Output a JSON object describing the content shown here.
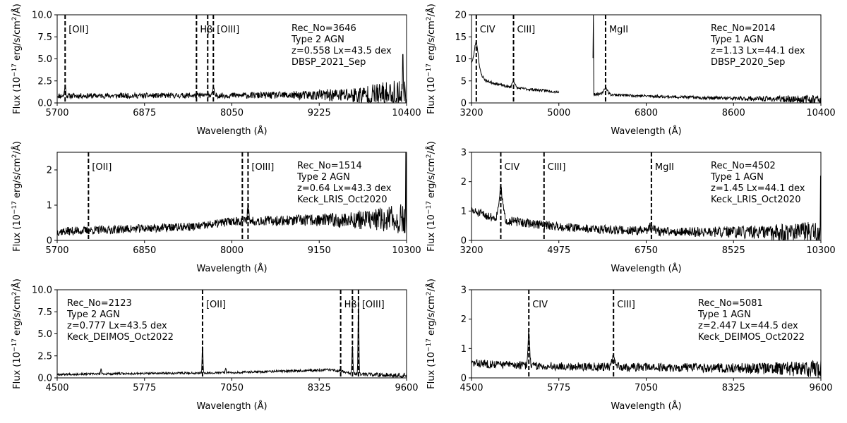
{
  "chart_data": [
    {
      "type": "line",
      "id": "p3646",
      "xlabel": "Wavelength (Å)",
      "ylabel_main": "Flux (10",
      "ylabel_sup": "−17",
      "ylabel_rest": " erg/s/cm",
      "ylabel_sup2": "2",
      "ylabel_end": "/Å)",
      "xlim": [
        5700,
        10400
      ],
      "ylim": [
        0,
        10
      ],
      "xticks": [
        "5700",
        "6875",
        "8050",
        "9225",
        "10400"
      ],
      "yticks": [
        "0.0",
        "2.5",
        "5.0",
        "7.5",
        "10.0"
      ],
      "info": [
        "Rec_No=3646",
        "Type 2 AGN",
        "z=0.558 Lx=43.5 dex",
        "DBSP_2021_Sep"
      ],
      "lines": [
        {
          "x": 5807,
          "label": "[OII]"
        },
        {
          "x": 7574,
          "label": "Hβ"
        },
        {
          "x": 7725,
          "label": ""
        },
        {
          "x": 7801,
          "label": "[OIII]"
        }
      ],
      "spectrum": {
        "gaps": [],
        "base": 0.8,
        "noise": 0.3,
        "noise_red": 1.8,
        "seed": 11,
        "peaks": [
          [
            5807,
            1.2,
            8
          ],
          [
            7725,
            0.5,
            8
          ],
          [
            7801,
            1.0,
            8
          ]
        ],
        "continuum": [
          [
            5700,
            0.8
          ],
          [
            10400,
            0.9
          ]
        ],
        "edge_spike": [
          10350,
          5.5
        ]
      }
    },
    {
      "type": "line",
      "id": "p2014",
      "xlabel": "Wavelength (Å)",
      "ylabel_main": "Flux (10",
      "ylabel_sup": "−17",
      "ylabel_rest": " erg/s/cm",
      "ylabel_sup2": "2",
      "ylabel_end": "/Å)",
      "xlim": [
        3200,
        10400
      ],
      "ylim": [
        0,
        20
      ],
      "xticks": [
        "3200",
        "5000",
        "6800",
        "8600",
        "10400"
      ],
      "yticks": [
        "0",
        "5",
        "10",
        "15",
        "20"
      ],
      "info": [
        "Rec_No=2014",
        "Type 1 AGN",
        "z=1.13 Lx=44.1 dex",
        "DBSP_2020_Sep"
      ],
      "lines": [
        {
          "x": 3299,
          "label": "CIV"
        },
        {
          "x": 4066,
          "label": "CIII]"
        },
        {
          "x": 5963,
          "label": "MgII"
        }
      ],
      "spectrum": {
        "gaps": [
          [
            5000,
            5700
          ]
        ],
        "base": 1.5,
        "noise": 0.3,
        "noise_red": 0.8,
        "seed": 23,
        "peaks": [
          [
            3299,
            6.0,
            40
          ],
          [
            4066,
            1.5,
            30
          ],
          [
            5963,
            1.5,
            40
          ]
        ],
        "continuum": [
          [
            3200,
            9.0
          ],
          [
            3500,
            5.0
          ],
          [
            4000,
            3.5
          ],
          [
            5000,
            2.5
          ],
          [
            5700,
            12.0
          ],
          [
            5720,
            2.0
          ],
          [
            7000,
            1.5
          ],
          [
            8600,
            1.0
          ],
          [
            10400,
            0.8
          ]
        ],
        "edge_spike": [
          5710,
          20.0
        ]
      }
    },
    {
      "type": "line",
      "id": "p1514",
      "xlabel": "Wavelength (Å)",
      "ylabel_main": "Flux (10",
      "ylabel_sup": "−17",
      "ylabel_rest": " erg/s/cm",
      "ylabel_sup2": "2",
      "ylabel_end": "/Å)",
      "xlim": [
        5700,
        10300
      ],
      "ylim": [
        0,
        2.5
      ],
      "xticks": [
        "5700",
        "6850",
        "8000",
        "9150",
        "10300"
      ],
      "yticks": [
        "0",
        "1",
        "2"
      ],
      "info": [
        "Rec_No=1514",
        "Type 2 AGN",
        "z=0.64 Lx=43.3 dex",
        "Keck_LRIS_Oct2020"
      ],
      "lines": [
        {
          "x": 6112,
          "label": "[OII]"
        },
        {
          "x": 8138,
          "label": ""
        },
        {
          "x": 8213,
          "label": "[OIII]"
        }
      ],
      "spectrum": {
        "gaps": [],
        "base": 0.4,
        "noise": 0.12,
        "noise_red": 0.35,
        "seed": 37,
        "peaks": [
          [
            8213,
            0.55,
            8
          ]
        ],
        "continuum": [
          [
            5700,
            0.25
          ],
          [
            7600,
            0.4
          ],
          [
            8000,
            0.55
          ],
          [
            10300,
            0.6
          ]
        ],
        "edge_spike": [
          10290,
          2.5
        ]
      }
    },
    {
      "type": "line",
      "id": "p4502",
      "xlabel": "Wavelength (Å)",
      "ylabel_main": "Flux (10",
      "ylabel_sup": "−17",
      "ylabel_rest": " erg/s/cm",
      "ylabel_sup2": "2",
      "ylabel_end": "/Å)",
      "xlim": [
        3200,
        10300
      ],
      "ylim": [
        0,
        3
      ],
      "xticks": [
        "3200",
        "4975",
        "6750",
        "8525",
        "10300"
      ],
      "yticks": [
        "0",
        "1",
        "2",
        "3"
      ],
      "info": [
        "Rec_No=4502",
        "Type 1 AGN",
        "z=1.45 Lx=44.1 dex",
        "Keck_LRIS_Oct2020"
      ],
      "lines": [
        {
          "x": 3795,
          "label": "CIV"
        },
        {
          "x": 4674,
          "label": "CIII]"
        },
        {
          "x": 6856,
          "label": "MgII"
        }
      ],
      "spectrum": {
        "gaps": [],
        "base": 0.3,
        "noise": 0.15,
        "noise_red": 0.3,
        "seed": 51,
        "peaks": [
          [
            3795,
            1.0,
            40
          ],
          [
            6856,
            0.15,
            60
          ]
        ],
        "continuum": [
          [
            3200,
            1.0
          ],
          [
            3800,
            0.7
          ],
          [
            4500,
            0.55
          ],
          [
            5500,
            0.4
          ],
          [
            7000,
            0.3
          ],
          [
            10300,
            0.25
          ]
        ],
        "edge_spike": [
          10290,
          2.2
        ]
      }
    },
    {
      "type": "line",
      "id": "p2123",
      "xlabel": "Wavelength (Å)",
      "ylabel_main": "Flux (10",
      "ylabel_sup": "−17",
      "ylabel_rest": " erg/s/cm",
      "ylabel_sup2": "2",
      "ylabel_end": "/Å)",
      "xlim": [
        4500,
        9600
      ],
      "ylim": [
        0,
        10
      ],
      "xticks": [
        "4500",
        "5775",
        "7050",
        "8325",
        "9600"
      ],
      "yticks": [
        "0.0",
        "2.5",
        "5.0",
        "7.5",
        "10.0"
      ],
      "info": [
        "Rec_No=2123",
        "Type 2 AGN",
        "z=0.777 Lx=43.5 dex",
        "Keck_DEIMOS_Oct2022"
      ],
      "lines": [
        {
          "x": 6622,
          "label": "[OII]"
        },
        {
          "x": 8638,
          "label": "Hβ"
        },
        {
          "x": 8810,
          "label": ""
        },
        {
          "x": 8898,
          "label": "[OIII]"
        }
      ],
      "spectrum": {
        "gaps": [],
        "base": 0.4,
        "noise": 0.12,
        "noise_red": 0.15,
        "seed": 67,
        "peaks": [
          [
            6622,
            3.2,
            6
          ],
          [
            8810,
            3.5,
            6
          ],
          [
            8898,
            8.8,
            6
          ],
          [
            5140,
            0.6,
            6
          ],
          [
            6960,
            0.5,
            6
          ]
        ],
        "continuum": [
          [
            4500,
            0.4
          ],
          [
            7000,
            0.6
          ],
          [
            8500,
            0.9
          ],
          [
            8900,
            0.4
          ],
          [
            9600,
            0.3
          ]
        ],
        "edge_spike": null
      }
    },
    {
      "type": "line",
      "id": "p5081",
      "xlabel": "Wavelength (Å)",
      "ylabel_main": "Flux (10",
      "ylabel_sup": "−17",
      "ylabel_rest": " erg/s/cm",
      "ylabel_sup2": "2",
      "ylabel_end": "/Å)",
      "xlim": [
        4500,
        9600
      ],
      "ylim": [
        0,
        3
      ],
      "xticks": [
        "4500",
        "5775",
        "7050",
        "8325",
        "9600"
      ],
      "yticks": [
        "0",
        "1",
        "2",
        "3"
      ],
      "info": [
        "Rec_No=5081",
        "Type 1 AGN",
        "z=2.447 Lx=44.5 dex",
        "Keck_DEIMOS_Oct2022"
      ],
      "lines": [
        {
          "x": 5337,
          "label": "CIV"
        },
        {
          "x": 6573,
          "label": "CIII]"
        }
      ],
      "spectrum": {
        "gaps": [],
        "base": 0.35,
        "noise": 0.14,
        "noise_red": 0.18,
        "seed": 83,
        "peaks": [
          [
            5337,
            1.2,
            12
          ],
          [
            6573,
            0.3,
            25
          ]
        ],
        "continuum": [
          [
            4500,
            0.5
          ],
          [
            5500,
            0.4
          ],
          [
            9600,
            0.3
          ]
        ],
        "edge_spike": null
      }
    }
  ]
}
